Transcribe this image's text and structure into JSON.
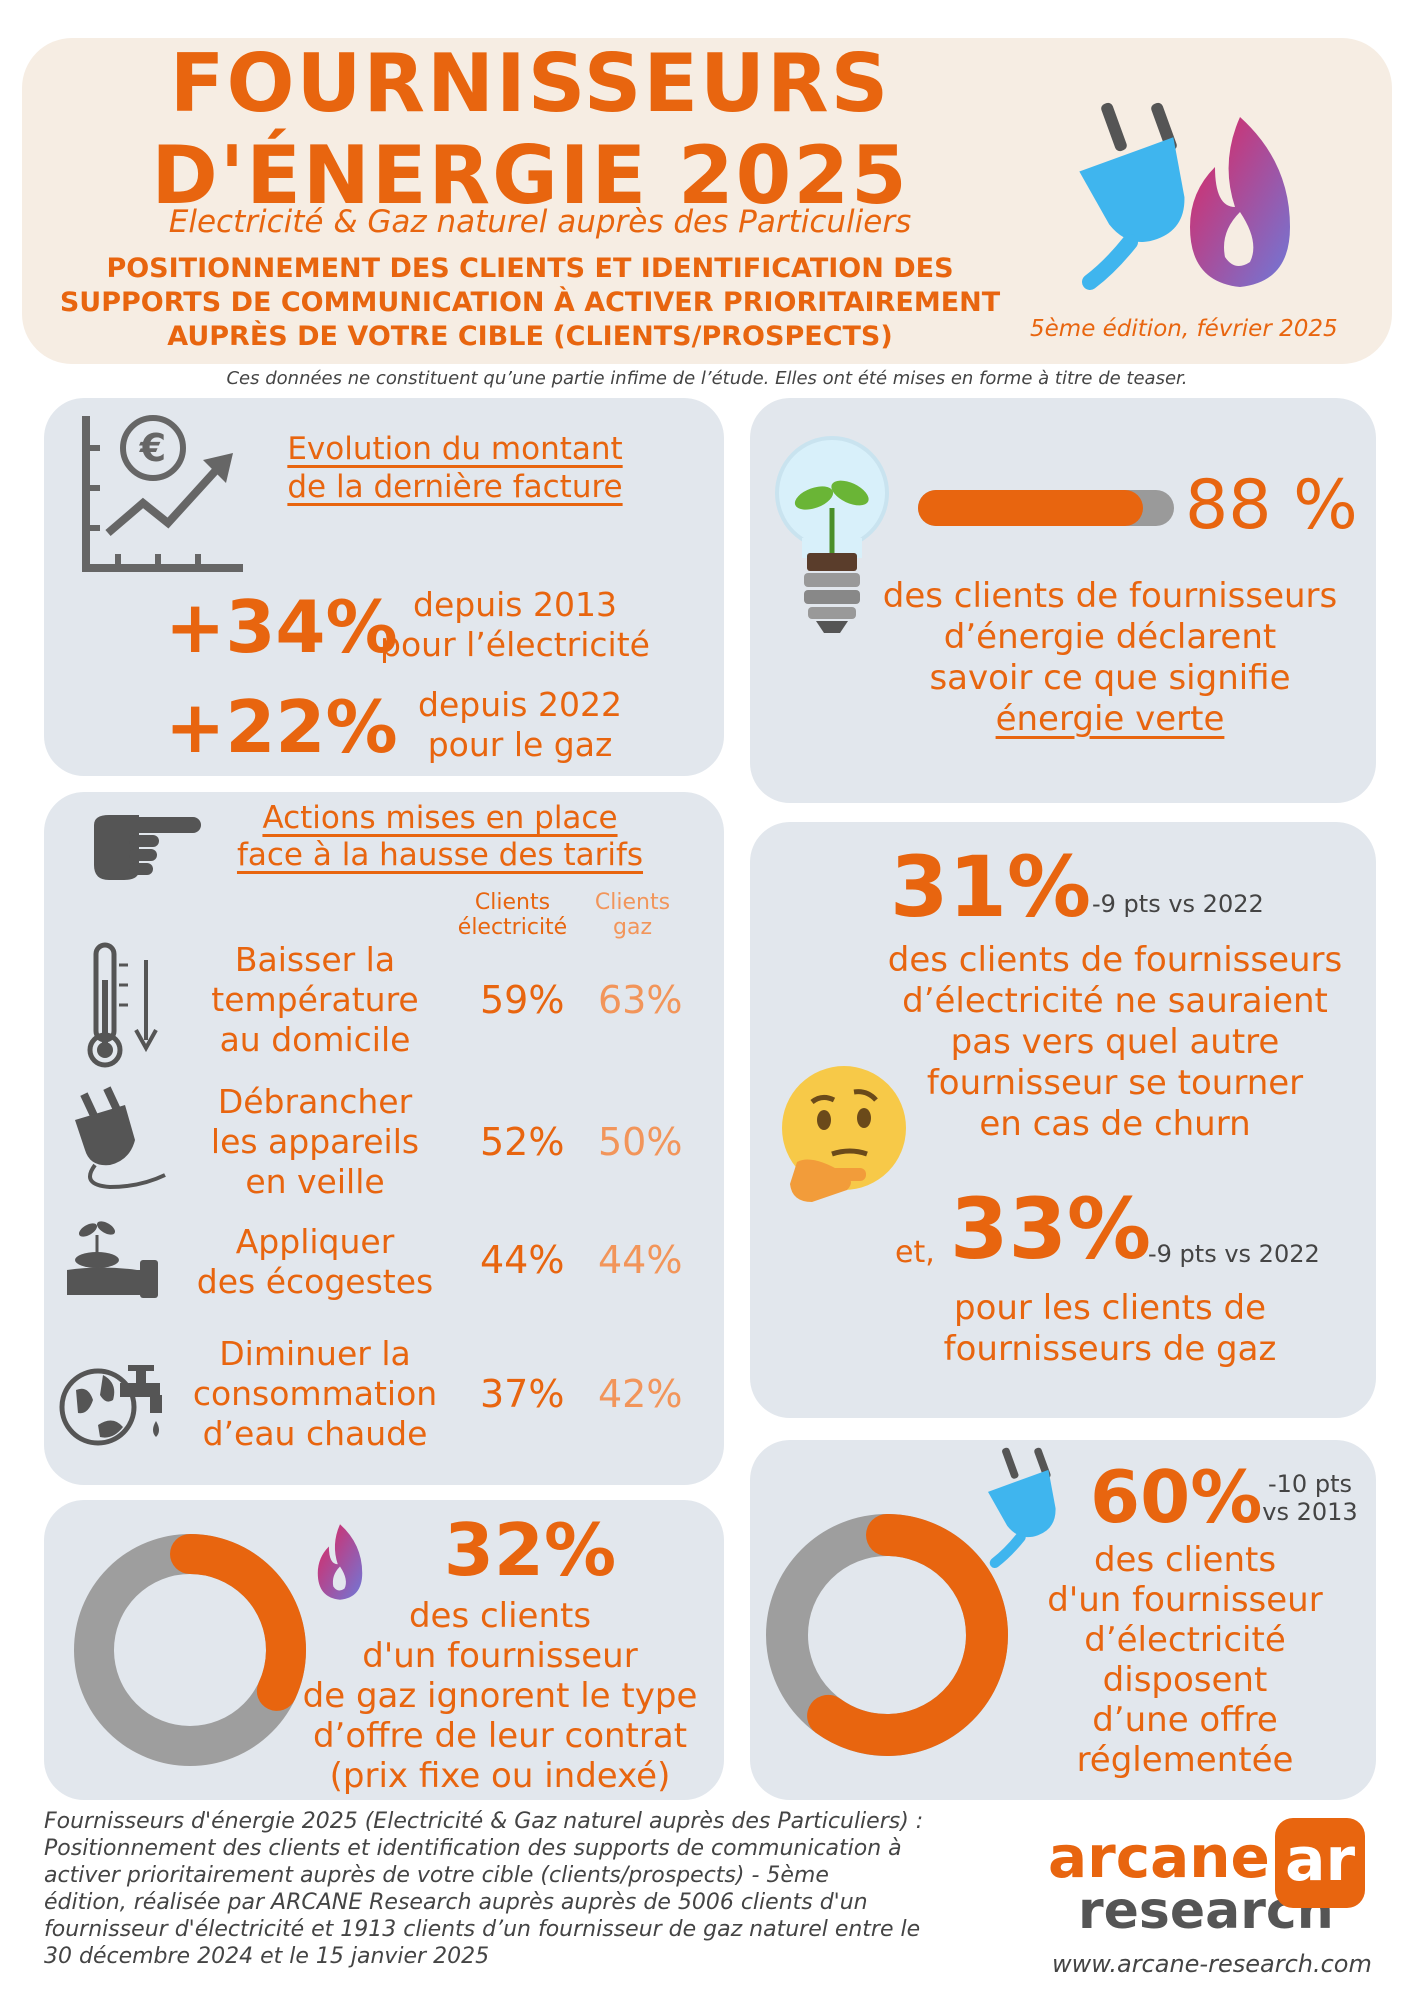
{
  "header": {
    "title_line1": "FOURNISSEURS",
    "title_line2": "D'ÉNERGIE 2025",
    "subtitle": "Electricité & Gaz naturel auprès des Particuliers",
    "desc_line1": "POSITIONNEMENT DES CLIENTS ET IDENTIFICATION DES",
    "desc_line2": "SUPPORTS DE COMMUNICATION À ACTIVER PRIORITAIREMENT",
    "desc_line3": "AUPRÈS DE VOTRE CIBLE (CLIENTS/PROSPECTS)",
    "edition": "5ème édition, février 2025"
  },
  "disclaimer": "Ces données ne constituent qu’une partie infime de l’étude. Elles ont été mises en forme à titre de teaser.",
  "facture": {
    "title_line1": "Evolution du montant",
    "title_line2": "de la dernière facture ",
    "elec_value": "+34%",
    "elec_line1": "depuis 2013",
    "elec_line2": "pour l’électricité",
    "gaz_value": "+22%",
    "gaz_line1": "depuis 2022",
    "gaz_line2": "pour le gaz"
  },
  "green": {
    "value": "88 %",
    "progress": 0.88,
    "line1": "des clients de fournisseurs",
    "line2": "d’énergie déclarent",
    "line3": "savoir ce que signifie",
    "line4": "énergie verte"
  },
  "actions": {
    "title_line1": "Actions mises en place",
    "title_line2": "face à la hausse des tarifs",
    "col_elec_line1": "Clients",
    "col_elec_line2": "électricité",
    "col_gaz_line1": "Clients",
    "col_gaz_line2": "gaz",
    "rows": [
      {
        "label1": "Baisser la",
        "label2": "température",
        "label3": "au domicile",
        "elec": "59%",
        "gaz": "63%"
      },
      {
        "label1": "Débrancher",
        "label2": "les appareils",
        "label3": "en veille",
        "elec": "52%",
        "gaz": "50%"
      },
      {
        "label1": "Appliquer",
        "label2": "des écogestes",
        "label3": "",
        "elec": "44%",
        "gaz": "44%"
      },
      {
        "label1": "Diminuer la",
        "label2": "consommation",
        "label3": "d’eau chaude",
        "elec": "37%",
        "gaz": "42%"
      }
    ]
  },
  "churn": {
    "value": "31%",
    "delta": "-9 pts vs 2022",
    "line1": "des clients de fournisseurs",
    "line2": "d’électricité ne sauraient",
    "line3": "pas vers quel autre",
    "line4": "fournisseur se tourner",
    "line5": "en cas de churn",
    "and_label": "et,",
    "value2": "33%",
    "delta2": "-9 pts vs 2022",
    "line6": "pour les clients de",
    "line7": "fournisseurs de gaz"
  },
  "gaz_contract": {
    "value": "32%",
    "fraction": 0.32,
    "line1": "des clients",
    "line2": "d'un fournisseur",
    "line3": "de gaz ignorent le type",
    "line4": "d’offre de leur contrat",
    "line5": "(prix fixe ou indexé)"
  },
  "regle": {
    "value": "60%",
    "fraction": 0.6,
    "delta_line1": "-10 pts",
    "delta_line2": "vs 2013",
    "line1": "des clients",
    "line2": "d'un fournisseur",
    "line3": "d’électricité",
    "line4": "disposent",
    "line5": "d’une offre",
    "line6": "réglementée"
  },
  "footer": {
    "line1": "Fournisseurs d'énergie 2025 (Electricité & Gaz naturel auprès des Particuliers) :",
    "line2": "Positionnement des clients et identification des supports de communication à",
    "line3": "activer prioritairement auprès de votre cible (clients/prospects) - 5ème",
    "line4": "édition, réalisée par ARCANE Research auprès auprès de 5006 clients d'un",
    "line5": "fournisseur d'électricité et 1913 clients d’un fournisseur de gaz naturel entre le",
    "line6": "30 décembre 2024 et le 15 janvier 2025",
    "logo_word1": "arcane",
    "logo_word2": "research",
    "logo_mark": "ar",
    "website": "www.arcane-research.com"
  },
  "colors": {
    "orange": "#e8650f",
    "light_orange": "#f2955a",
    "card": "#e2e7ed",
    "header_bg": "#f6ede3",
    "ring_grey": "#9e9e9e"
  }
}
